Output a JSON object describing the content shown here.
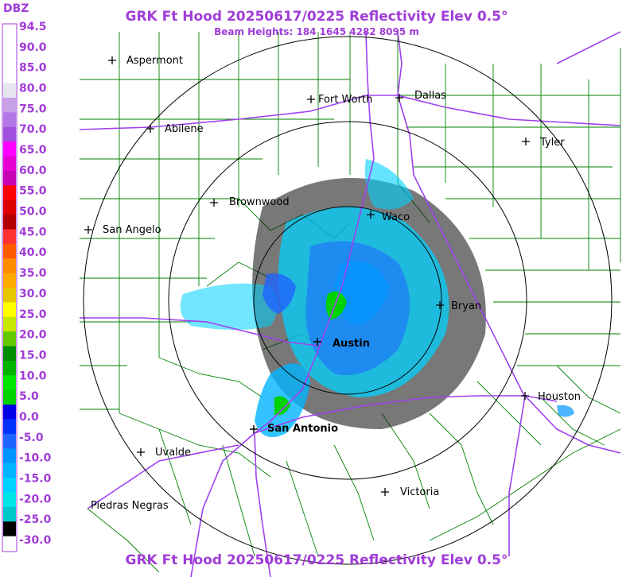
{
  "header": {
    "title": "GRK Ft Hood 20250617/0225 Reflectivity Elev 0.5°",
    "subtitle": "Beam Heights: 184 1645 4282 8095 m",
    "footer_title": "GRK Ft Hood 20250617/0225 Reflectivity Elev 0.5°"
  },
  "legend": {
    "unit": "DBZ",
    "ticks": [
      "94.5",
      "90.0",
      "85.0",
      "80.0",
      "75.0",
      "70.0",
      "65.0",
      "60.0",
      "55.0",
      "50.0",
      "45.0",
      "40.0",
      "35.0",
      "30.0",
      "25.0",
      "20.0",
      "15.0",
      "10.0",
      "5.0",
      "0.0",
      "-5.0",
      "-10.0",
      "-15.0",
      "-20.0",
      "-25.0",
      "-30.0"
    ],
    "colors": [
      "#ffffff",
      "#ffffff",
      "#ffffff",
      "#ffffff",
      "#e6e6f0",
      "#c8a0e6",
      "#b478e6",
      "#a050dc",
      "#ff00ff",
      "#e600d2",
      "#c800b4",
      "#ff0000",
      "#dc0000",
      "#b40000",
      "#ff3232",
      "#ff5a00",
      "#ff8c00",
      "#ffaa00",
      "#e6c800",
      "#ffff00",
      "#c8e600",
      "#64c800",
      "#008c00",
      "#00b400",
      "#00e600",
      "#00d200",
      "#0000e6",
      "#0032ff",
      "#1e64ff",
      "#0096ff",
      "#00b4ff",
      "#00d2ff",
      "#00e6e6",
      "#00c8c8",
      "#000000",
      "#ffffff"
    ]
  },
  "map": {
    "cities": [
      {
        "name": "Aspermont",
        "bold": false
      },
      {
        "name": "Fort Worth",
        "bold": false
      },
      {
        "name": "Dallas",
        "bold": false
      },
      {
        "name": "Abilene",
        "bold": false
      },
      {
        "name": "Tyler",
        "bold": false
      },
      {
        "name": "Brownwood",
        "bold": false
      },
      {
        "name": "Waco",
        "bold": false
      },
      {
        "name": "San Angelo",
        "bold": false
      },
      {
        "name": "Bryan",
        "bold": false
      },
      {
        "name": "Austin",
        "bold": true
      },
      {
        "name": "Houston",
        "bold": false
      },
      {
        "name": "San Antonio",
        "bold": true
      },
      {
        "name": "Uvalde",
        "bold": false
      },
      {
        "name": "Victoria",
        "bold": false
      },
      {
        "name": "Piedras Negras",
        "bold": false
      }
    ]
  }
}
